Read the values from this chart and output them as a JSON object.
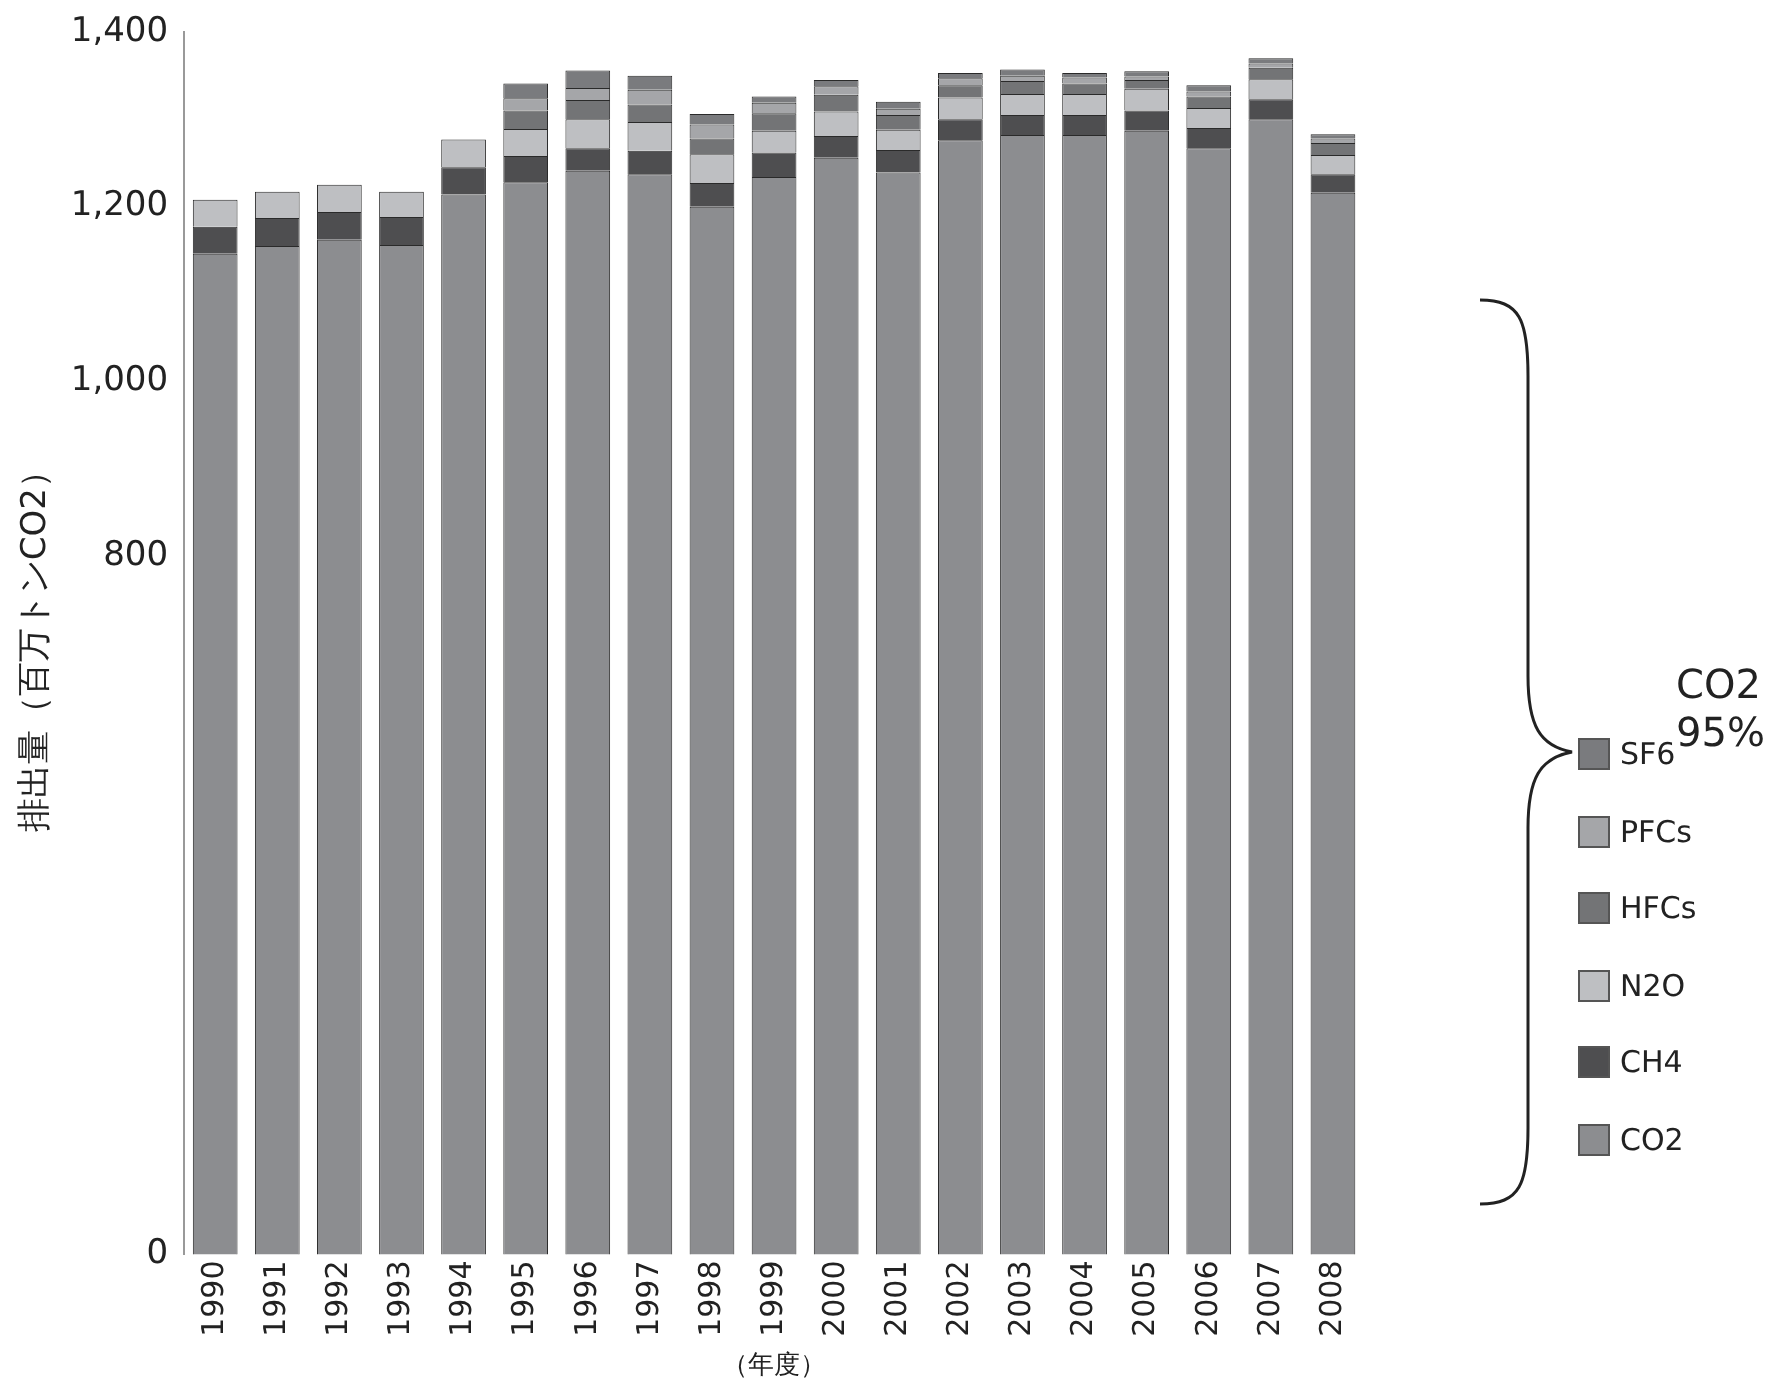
{
  "chart_data": {
    "type": "bar",
    "stacked": true,
    "xlabel": "（年度）",
    "ylabel": "排出量（百万トンCO2）",
    "categories": [
      "1990",
      "1991",
      "1992",
      "1993",
      "1994",
      "1995",
      "1996",
      "1997",
      "1998",
      "1999",
      "2000",
      "2001",
      "2002",
      "2003",
      "2004",
      "2005",
      "2006",
      "2007",
      "2008"
    ],
    "series": [
      {
        "name": "CO2",
        "color": "#8c8d90",
        "values": [
          1146,
          1155,
          1162,
          1156,
          1214,
          1228,
          1241,
          1237,
          1200,
          1234,
          1256,
          1239,
          1276,
          1282,
          1282,
          1287,
          1267,
          1300,
          1216
        ]
      },
      {
        "name": "CH4",
        "color": "#4e4e50",
        "values": [
          31,
          32,
          32,
          32,
          31,
          30,
          26,
          27,
          27,
          28,
          25,
          26,
          24,
          23,
          23,
          23,
          23,
          23,
          21
        ]
      },
      {
        "name": "N2O",
        "color": "#bebfc2",
        "values": [
          31,
          30,
          31,
          29,
          32,
          31,
          33,
          33,
          33,
          25,
          28,
          23,
          25,
          24,
          24,
          25,
          23,
          23,
          22
        ]
      },
      {
        "name": "HFCs",
        "color": "#737476",
        "values": [
          null,
          null,
          null,
          null,
          null,
          21,
          22,
          20,
          18,
          20,
          19,
          17,
          14,
          15,
          12,
          10,
          13,
          13,
          14
        ]
      },
      {
        "name": "PFCs",
        "color": "#a5a6a9",
        "values": [
          null,
          null,
          null,
          null,
          null,
          14,
          14,
          17,
          16,
          12,
          10,
          7,
          8,
          6,
          7,
          4,
          6,
          5,
          5
        ]
      },
      {
        "name": "SF6",
        "color": "#7a7b7e",
        "values": [
          null,
          null,
          null,
          null,
          null,
          17,
          20,
          16,
          12,
          7,
          7,
          8,
          6,
          7,
          5,
          6,
          7,
          6,
          5
        ]
      }
    ],
    "ylim": [
      0,
      1400
    ],
    "yticks": [
      {
        "value": 0,
        "label": "0"
      },
      {
        "value": 800,
        "label": "800"
      },
      {
        "value": 1000,
        "label": "1,000"
      },
      {
        "value": 1200,
        "label": "1,200"
      },
      {
        "value": 1400,
        "label": "1,400"
      }
    ],
    "grid": false,
    "legend": "right",
    "annotations": [
      "CO2 95%"
    ]
  }
}
